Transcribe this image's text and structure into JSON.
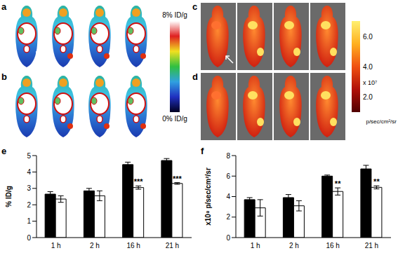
{
  "image_panels": [
    {
      "label": "a"
    },
    {
      "label": "b"
    },
    {
      "label": "c"
    },
    {
      "label": "d"
    }
  ],
  "colorbars": [
    {
      "range": [
        0,
        8
      ],
      "ticks": [
        {
          "value": 8,
          "label": "8% ID/g"
        },
        {
          "value": 0,
          "label": "0% ID/g"
        }
      ]
    },
    {
      "range": [
        1,
        7
      ],
      "ticks": [
        {
          "value": 6,
          "label": "6.0"
        },
        {
          "value": 4,
          "label": "4.0"
        },
        {
          "value": 2,
          "label": "2.0"
        }
      ],
      "multiplier": "x 10⁷",
      "unit": "p/sec/cm²/sr"
    }
  ],
  "chart_data": [
    {
      "panel": "e",
      "type": "bar",
      "y_label": "% ID/g",
      "categories": [
        "1 h",
        "2 h",
        "16 h",
        "21 h"
      ],
      "series": [
        {
          "color": "#000000",
          "values": [
            2.65,
            2.85,
            4.45,
            4.7
          ],
          "errors": [
            0.15,
            0.15,
            0.15,
            0.12
          ]
        },
        {
          "color": "#ffffff",
          "values": [
            2.35,
            2.55,
            3.05,
            3.3
          ],
          "errors": [
            0.2,
            0.3,
            0.1,
            0.05
          ],
          "significance": [
            null,
            null,
            "***",
            "***"
          ]
        }
      ],
      "ylim": [
        0,
        5
      ],
      "yticks": [
        0,
        1,
        2,
        3,
        4,
        5
      ],
      "grid": false
    },
    {
      "panel": "f",
      "type": "bar",
      "y_label": "x10⁸ p/sec/cm²/sr",
      "categories": [
        "1 h",
        "2 h",
        "16 h",
        "21 h"
      ],
      "series": [
        {
          "color": "#000000",
          "values": [
            3.7,
            3.9,
            6.0,
            6.7
          ],
          "errors": [
            0.2,
            0.3,
            0.1,
            0.35
          ]
        },
        {
          "color": "#ffffff",
          "values": [
            2.9,
            3.1,
            4.5,
            4.9
          ],
          "errors": [
            0.8,
            0.5,
            0.35,
            0.15
          ],
          "significance": [
            null,
            null,
            "**",
            "**"
          ]
        }
      ],
      "ylim": [
        0,
        8
      ],
      "yticks": [
        0,
        2,
        4,
        6,
        8
      ],
      "grid": false
    }
  ]
}
